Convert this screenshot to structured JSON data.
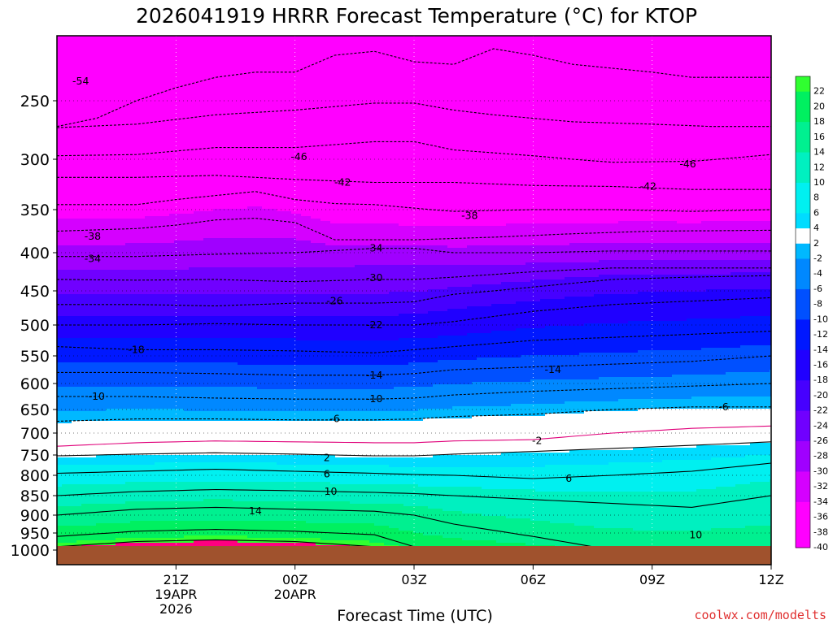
{
  "chart_data": {
    "type": "heatmap",
    "title": "2026041919 HRRR Forecast Temperature (°C) for KTOP",
    "xlabel": "Forecast Time (UTC)",
    "ylabel": "",
    "credit": "coolwx.com/modelts",
    "pressure_levels": [
      250,
      300,
      350,
      400,
      450,
      500,
      550,
      600,
      650,
      700,
      750,
      800,
      850,
      900,
      950,
      1000
    ],
    "pressure_labels": [
      "250",
      "300",
      "350",
      "400",
      "450",
      "500",
      "550",
      "600",
      "650",
      "700",
      "750",
      "800",
      "850",
      "900",
      "950",
      "1000"
    ],
    "y_range_hpa": [
      200,
      1000
    ],
    "x_range_hours": [
      -3,
      15
    ],
    "time_ticks": [
      {
        "hour": 0,
        "label": "21Z",
        "date": "19APR",
        "year": "2026"
      },
      {
        "hour": 3,
        "label": "00Z",
        "date": "20APR",
        "year": ""
      },
      {
        "hour": 6,
        "label": "03Z",
        "date": "",
        "year": ""
      },
      {
        "hour": 9,
        "label": "06Z",
        "date": "",
        "year": ""
      },
      {
        "hour": 12,
        "label": "09Z",
        "date": "",
        "year": ""
      },
      {
        "hour": 15,
        "label": "12Z",
        "date": "",
        "year": ""
      }
    ],
    "colorbar_values": [
      22,
      20,
      18,
      16,
      14,
      12,
      10,
      8,
      6,
      4,
      2,
      -2,
      -4,
      -6,
      -8,
      -10,
      -12,
      -14,
      -16,
      -18,
      -20,
      -22,
      -24,
      -26,
      -28,
      -30,
      -32,
      -34,
      -36,
      -38,
      -40
    ],
    "colorbar_labels": [
      "22",
      "20",
      "18",
      "16",
      "14",
      "12",
      "10",
      "8",
      "6",
      "4",
      "2",
      "-2",
      "-4",
      "-6",
      "-8",
      "-10",
      "-12",
      "-14",
      "-16",
      "-18",
      "-20",
      "-22",
      "-24",
      "-26",
      "-28",
      "-30",
      "-32",
      "-34",
      "-36",
      "-38",
      "-40"
    ],
    "contour_labels": [
      {
        "text": "-54",
        "temp": -54,
        "hour": -2.4,
        "hpa": 235
      },
      {
        "text": "-46",
        "temp": -46,
        "hour": 3.1,
        "hpa": 298
      },
      {
        "text": "-46",
        "temp": -46,
        "hour": 12.9,
        "hpa": 305
      },
      {
        "text": "-42",
        "temp": -42,
        "hour": 4.2,
        "hpa": 323
      },
      {
        "text": "-42",
        "temp": -42,
        "hour": 11.9,
        "hpa": 327
      },
      {
        "text": "-38",
        "temp": -38,
        "hour": 7.4,
        "hpa": 357
      },
      {
        "text": "-38",
        "temp": -38,
        "hour": -2.1,
        "hpa": 381
      },
      {
        "text": "-34",
        "temp": -34,
        "hour": 5.0,
        "hpa": 395
      },
      {
        "text": "-34",
        "temp": -34,
        "hour": -2.1,
        "hpa": 408
      },
      {
        "text": "-30",
        "temp": -30,
        "hour": 5.0,
        "hpa": 433
      },
      {
        "text": "-26",
        "temp": -26,
        "hour": 4.0,
        "hpa": 465
      },
      {
        "text": "-22",
        "temp": -22,
        "hour": 5.0,
        "hpa": 500
      },
      {
        "text": "-18",
        "temp": -18,
        "hour": -1.0,
        "hpa": 540
      },
      {
        "text": "-14",
        "temp": -14,
        "hour": 5.0,
        "hpa": 585
      },
      {
        "text": "-14",
        "temp": -14,
        "hour": 9.5,
        "hpa": 575
      },
      {
        "text": "-10",
        "temp": -10,
        "hour": -2.0,
        "hpa": 625
      },
      {
        "text": "-10",
        "temp": -10,
        "hour": 5.0,
        "hpa": 630
      },
      {
        "text": "-6",
        "temp": -6,
        "hour": 4.0,
        "hpa": 670
      },
      {
        "text": "-6",
        "temp": -6,
        "hour": 13.8,
        "hpa": 645
      },
      {
        "text": "-2",
        "temp": -2,
        "hour": 9.1,
        "hpa": 718
      },
      {
        "text": "2",
        "temp": 2,
        "hour": 3.8,
        "hpa": 757
      },
      {
        "text": "6",
        "temp": 6,
        "hour": 3.8,
        "hpa": 797
      },
      {
        "text": "6",
        "temp": 6,
        "hour": 9.9,
        "hpa": 808
      },
      {
        "text": "10",
        "temp": 10,
        "hour": 3.9,
        "hpa": 840
      },
      {
        "text": "10",
        "temp": 10,
        "hour": 13.1,
        "hpa": 956
      },
      {
        "text": "14",
        "temp": 14,
        "hour": 2.0,
        "hpa": 890
      }
    ]
  },
  "colors": {
    "frame": "#000000",
    "ground": "#a0522d",
    "freezing_line": "#e0007a",
    "credit": "#e03030",
    "palette": [
      "#ff00ff",
      "#d500ff",
      "#a000ff",
      "#7000ff",
      "#4600ff",
      "#2000ff",
      "#0018ff",
      "#0050ff",
      "#0088ff",
      "#00b8ff",
      "#00dcff",
      "#00f0f0",
      "#00f0c0",
      "#00f090",
      "#00f060",
      "#30ff30",
      "#ffffff",
      "#ffff00",
      "#ffd700",
      "#ffaa00",
      "#ff9000",
      "#ff7000",
      "#ff5000",
      "#ff3000",
      "#ff0000",
      "#ff0040",
      "#ff0080"
    ]
  }
}
